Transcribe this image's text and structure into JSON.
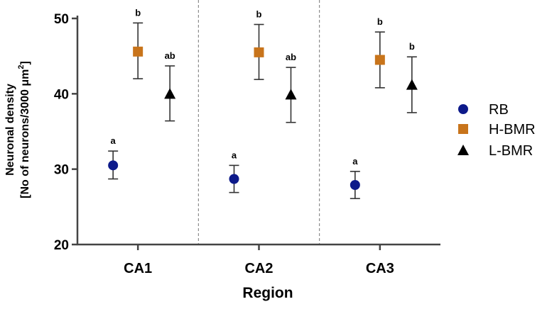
{
  "chart_data": {
    "type": "scatter",
    "title": "",
    "xlabel": "Region",
    "ylabel_line1": "Neuronal density",
    "ylabel_line2_prefix": "[No of neurons/3000 μm",
    "ylabel_line2_sup": "2",
    "ylabel_line2_suffix": "]",
    "ylim": [
      20,
      50
    ],
    "yticks": [
      {
        "value": 20,
        "label": "20"
      },
      {
        "value": 30,
        "label": "30"
      },
      {
        "value": 40,
        "label": "40"
      },
      {
        "value": 50,
        "label": "50"
      }
    ],
    "categories": [
      "CA1",
      "CA2",
      "CA3"
    ],
    "legend_position": "right",
    "series": [
      {
        "name": "RB",
        "marker": "circle",
        "color": "#0d1a8a",
        "values": [
          30.5,
          28.7,
          27.9
        ],
        "err_low": [
          28.7,
          26.9,
          26.1
        ],
        "err_high": [
          32.4,
          30.5,
          29.7
        ],
        "labels": [
          "a",
          "a",
          "a"
        ]
      },
      {
        "name": "H-BMR",
        "marker": "square",
        "color": "#c8741b",
        "values": [
          45.6,
          45.5,
          44.5
        ],
        "err_low": [
          42.0,
          41.9,
          40.8
        ],
        "err_high": [
          49.4,
          49.2,
          48.2
        ],
        "labels": [
          "b",
          "b",
          "b"
        ]
      },
      {
        "name": "L-BMR",
        "marker": "triangle",
        "color": "#000000",
        "values": [
          40.0,
          39.9,
          41.2
        ],
        "err_low": [
          36.4,
          36.2,
          37.5
        ],
        "err_high": [
          43.7,
          43.5,
          44.9
        ],
        "labels": [
          "ab",
          "ab",
          "b"
        ]
      }
    ]
  }
}
